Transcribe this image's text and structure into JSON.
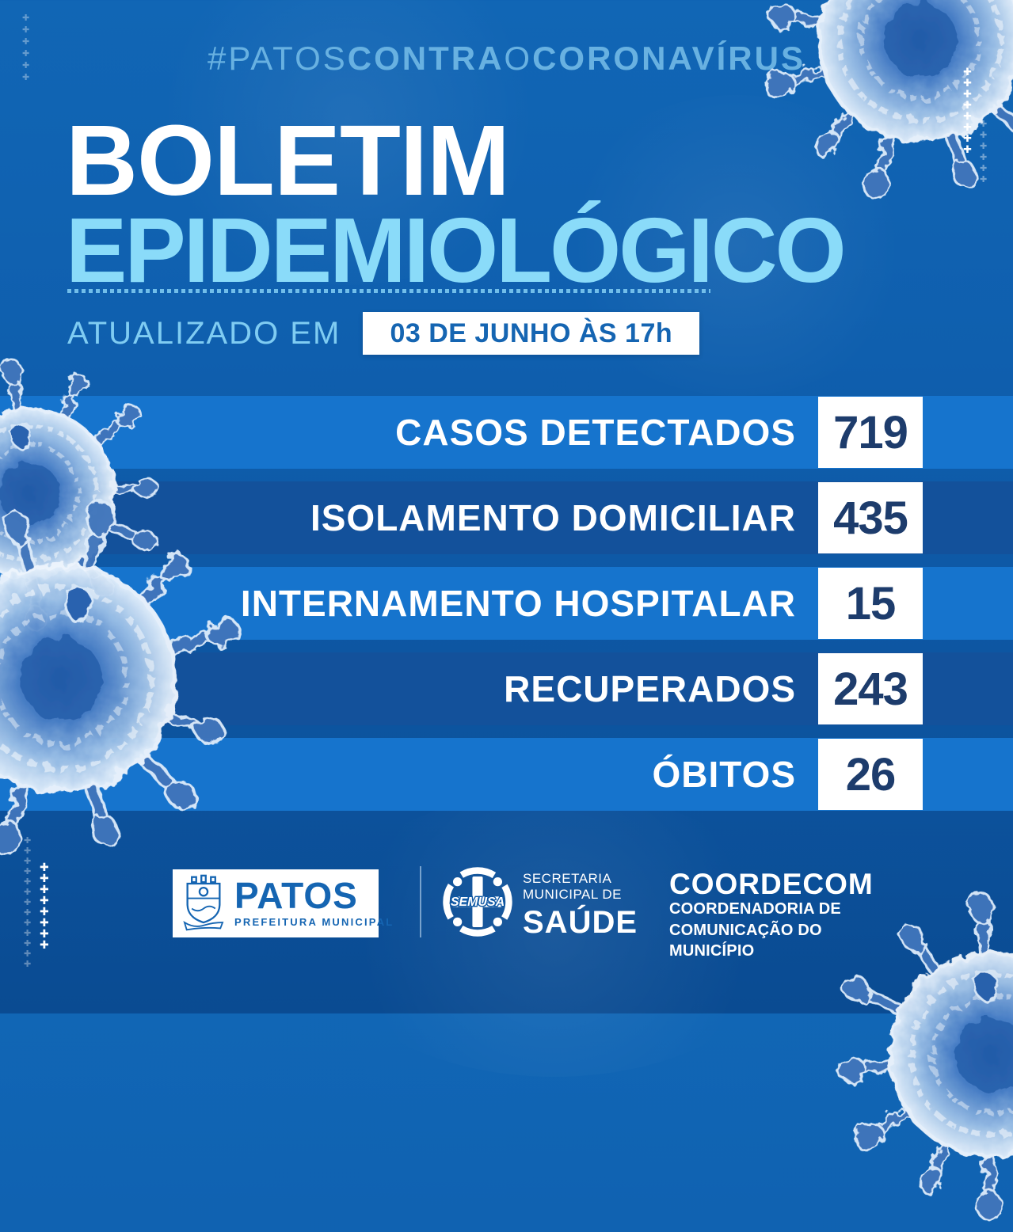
{
  "colors": {
    "background_top": "#1166b5",
    "background_bottom": "#0a4b92",
    "band_bright": "#1674cd",
    "band_dark": "#13519b",
    "hashtag_blue": "#68b1e1",
    "title_white": "#ffffff",
    "title_cyan": "#8adbf9",
    "value_navy": "#1d3c6c",
    "institutional_blue": "#1565b2"
  },
  "icons": {
    "plus_glyph": "✚",
    "virus": "coronavirus-illustration"
  },
  "header": {
    "hashtag": {
      "part1": "#PATOS",
      "part2": "CONTRA",
      "part3": "O",
      "part4": "CORONAVÍRUS"
    },
    "title_line1": "BOLETIM",
    "title_line2": "EPIDEMIOLÓGICO",
    "updated_label": "ATUALIZADO EM",
    "updated_value": "03 DE JUNHO ÀS 17h"
  },
  "stats": [
    {
      "label": "CASOS DETECTADOS",
      "value": "719"
    },
    {
      "label": "ISOLAMENTO DOMICILIAR",
      "value": "435"
    },
    {
      "label": "INTERNAMENTO HOSPITALAR",
      "value": "15"
    },
    {
      "label": "RECUPERADOS",
      "value": "243"
    },
    {
      "label": "ÓBITOS",
      "value": "26"
    }
  ],
  "footer": {
    "patos": {
      "name": "PATOS",
      "subtitle": "PREFEITURA MUNICIPAL"
    },
    "semusa": {
      "emblem_text": "SEMUSA",
      "secretaria_line1": "SECRETARIA",
      "secretaria_line2": "MUNICIPAL DE",
      "name": "SAÚDE"
    },
    "coordecom": {
      "name": "COORDECOM",
      "line1": "COORDENADORIA DE",
      "line2": "COMUNICAÇÃO DO",
      "line3": "MUNICÍPIO"
    }
  }
}
